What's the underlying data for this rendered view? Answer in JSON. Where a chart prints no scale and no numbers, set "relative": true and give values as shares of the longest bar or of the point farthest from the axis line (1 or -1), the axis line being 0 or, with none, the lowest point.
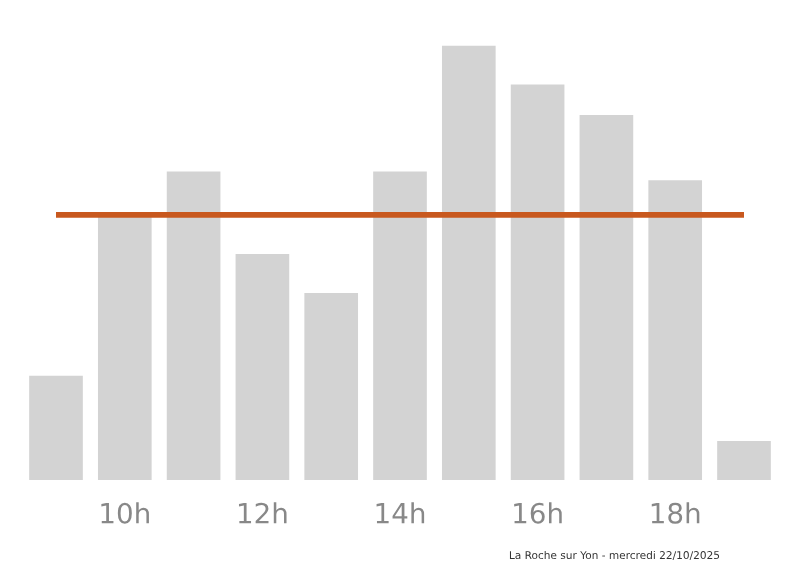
{
  "chart_data": {
    "type": "bar",
    "relative": true,
    "categories": [
      null,
      "10h",
      null,
      "12h",
      null,
      "14h",
      null,
      "16h",
      null,
      "18h",
      null
    ],
    "values": [
      0.24,
      0.61,
      0.71,
      0.52,
      0.43,
      0.71,
      1,
      0.91,
      0.84,
      0.69,
      0.09
    ],
    "color": "#d3d3d3",
    "ref_lines": [
      {
        "axis": "y",
        "value": 0.61,
        "color": "#c8581e"
      }
    ],
    "grid": false,
    "legend": false,
    "annotations": [
      "La Roche sur Yon - mercredi 22/10/2025"
    ]
  }
}
